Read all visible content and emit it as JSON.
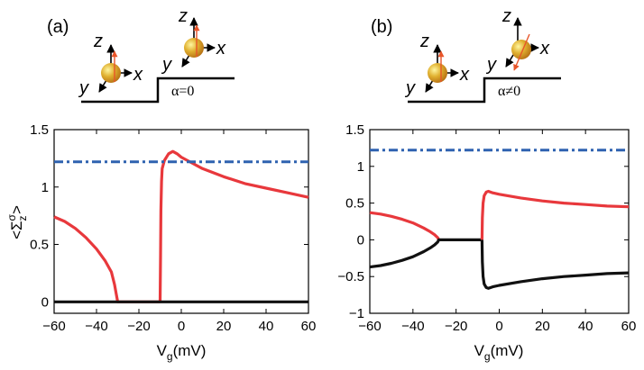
{
  "panels": [
    {
      "label": "(a)",
      "alpha_label": "α=0",
      "xlabel_main": "V",
      "xlabel_sub": "g",
      "xlabel_unit": "(mV)",
      "ylabel": "<Σ_z^σ>"
    },
    {
      "label": "(b)",
      "alpha_label": "α≠0",
      "xlabel_main": "V",
      "xlabel_sub": "g",
      "xlabel_unit": "(mV)"
    }
  ],
  "schematic": {
    "axis_x": "x",
    "axis_y": "y",
    "axis_z": "z"
  },
  "colors": {
    "red": "#e8383c",
    "black": "#111111",
    "blue": "#2f62b0",
    "sphere": "#e0b030",
    "arrow": "#e8552a"
  },
  "chart_data": [
    {
      "type": "line",
      "panel": "(a)",
      "xlim": [
        -60,
        60
      ],
      "ylim": [
        -0.1,
        1.5
      ],
      "xticks": [
        -60,
        -40,
        -20,
        0,
        20,
        40,
        60
      ],
      "yticks": [
        0,
        0.5,
        1,
        1.5
      ],
      "ytick_labels": [
        "0",
        "0.5",
        "1",
        "1.5"
      ],
      "series": [
        {
          "color": "red",
          "style": "solid",
          "points": [
            [
              -60,
              0.74
            ],
            [
              -55,
              0.7
            ],
            [
              -50,
              0.64
            ],
            [
              -45,
              0.56
            ],
            [
              -40,
              0.46
            ],
            [
              -36,
              0.36
            ],
            [
              -33,
              0.26
            ],
            [
              -31.5,
              0.15
            ],
            [
              -30.5,
              0.05
            ],
            [
              -30,
              0
            ],
            [
              -10,
              0
            ]
          ]
        },
        {
          "color": "red",
          "style": "solid",
          "points": [
            [
              -10,
              0
            ],
            [
              -9.8,
              0.4
            ],
            [
              -9.6,
              0.8
            ],
            [
              -9.3,
              1.05
            ],
            [
              -9,
              1.16
            ],
            [
              -8,
              1.23
            ],
            [
              -6,
              1.29
            ],
            [
              -4,
              1.31
            ],
            [
              -2,
              1.29
            ],
            [
              0,
              1.26
            ],
            [
              5,
              1.21
            ],
            [
              10,
              1.16
            ],
            [
              20,
              1.09
            ],
            [
              30,
              1.03
            ],
            [
              40,
              0.99
            ],
            [
              50,
              0.95
            ],
            [
              60,
              0.91
            ]
          ]
        },
        {
          "color": "black",
          "style": "solid",
          "points": [
            [
              -60,
              0
            ],
            [
              60,
              0
            ]
          ]
        },
        {
          "color": "blue",
          "style": "dashdot",
          "points": [
            [
              -60,
              1.22
            ],
            [
              60,
              1.22
            ]
          ]
        }
      ]
    },
    {
      "type": "line",
      "panel": "(b)",
      "xlim": [
        -60,
        60
      ],
      "ylim": [
        -1,
        1.5
      ],
      "xticks": [
        -60,
        -40,
        -20,
        0,
        20,
        40,
        60
      ],
      "yticks": [
        -1,
        -0.5,
        0,
        0.5,
        1,
        1.5
      ],
      "ytick_labels": [
        "−1",
        "−0.5",
        "0",
        "0.5",
        "1",
        "1.5"
      ],
      "series": [
        {
          "color": "red",
          "style": "solid",
          "points": [
            [
              -60,
              0.37
            ],
            [
              -55,
              0.35
            ],
            [
              -50,
              0.32
            ],
            [
              -45,
              0.28
            ],
            [
              -40,
              0.23
            ],
            [
              -35,
              0.16
            ],
            [
              -32,
              0.11
            ],
            [
              -30,
              0.07
            ],
            [
              -28.5,
              0.03
            ],
            [
              -28,
              0
            ]
          ]
        },
        {
          "color": "black",
          "style": "solid",
          "points": [
            [
              -60,
              -0.37
            ],
            [
              -55,
              -0.35
            ],
            [
              -50,
              -0.32
            ],
            [
              -45,
              -0.28
            ],
            [
              -40,
              -0.23
            ],
            [
              -35,
              -0.16
            ],
            [
              -32,
              -0.11
            ],
            [
              -30,
              -0.07
            ],
            [
              -28.5,
              -0.03
            ],
            [
              -28,
              0
            ],
            [
              -8,
              0
            ]
          ]
        },
        {
          "color": "red",
          "style": "solid",
          "points": [
            [
              -8,
              0
            ],
            [
              -7.8,
              0.3
            ],
            [
              -7.5,
              0.5
            ],
            [
              -7,
              0.6
            ],
            [
              -6,
              0.65
            ],
            [
              -5,
              0.66
            ],
            [
              -3,
              0.64
            ],
            [
              0,
              0.62
            ],
            [
              10,
              0.57
            ],
            [
              20,
              0.53
            ],
            [
              30,
              0.5
            ],
            [
              40,
              0.48
            ],
            [
              50,
              0.46
            ],
            [
              60,
              0.45
            ]
          ]
        },
        {
          "color": "black",
          "style": "solid",
          "points": [
            [
              -8,
              0
            ],
            [
              -7.8,
              -0.3
            ],
            [
              -7.5,
              -0.5
            ],
            [
              -7,
              -0.6
            ],
            [
              -6,
              -0.65
            ],
            [
              -5,
              -0.66
            ],
            [
              -3,
              -0.64
            ],
            [
              0,
              -0.62
            ],
            [
              10,
              -0.57
            ],
            [
              20,
              -0.53
            ],
            [
              30,
              -0.5
            ],
            [
              40,
              -0.48
            ],
            [
              50,
              -0.46
            ],
            [
              60,
              -0.45
            ]
          ]
        },
        {
          "color": "blue",
          "style": "dashdot",
          "points": [
            [
              -60,
              1.22
            ],
            [
              60,
              1.22
            ]
          ]
        }
      ]
    }
  ]
}
